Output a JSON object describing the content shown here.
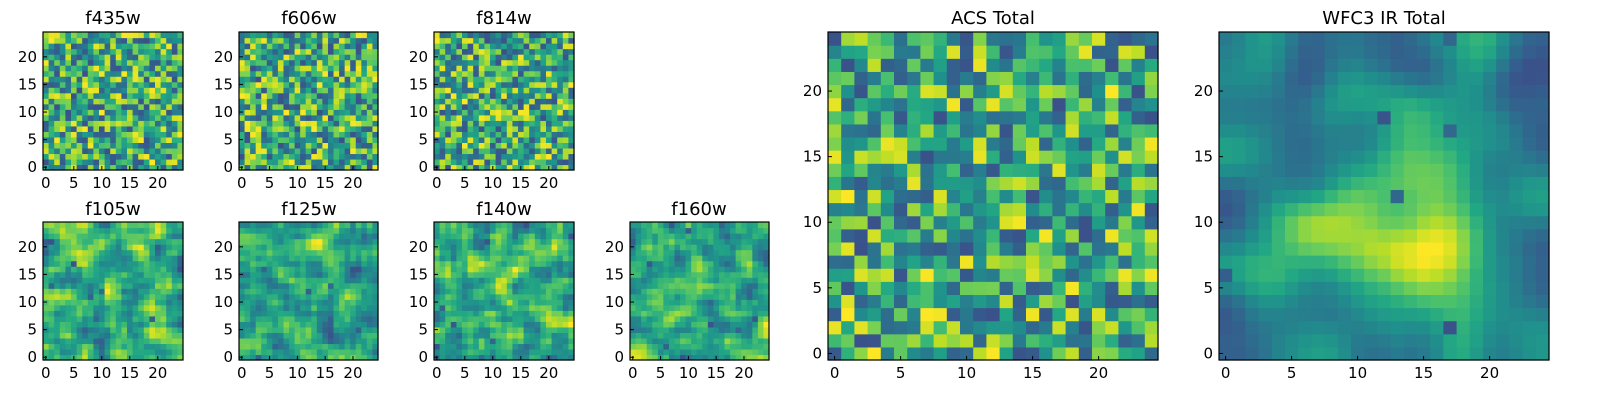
{
  "chart_data": {
    "type": "heatmap",
    "colormap": "viridis",
    "panels": [
      {
        "id": "f435w",
        "title": "f435w",
        "grid": 25,
        "xticks": [
          "0",
          "5",
          "10",
          "15",
          "20"
        ],
        "yticks": [
          "0",
          "5",
          "10",
          "15",
          "20"
        ],
        "texture": "noise",
        "seed": 11
      },
      {
        "id": "f606w",
        "title": "f606w",
        "grid": 25,
        "xticks": [
          "0",
          "5",
          "10",
          "15",
          "20"
        ],
        "yticks": [
          "0",
          "5",
          "10",
          "15",
          "20"
        ],
        "texture": "noise",
        "seed": 23
      },
      {
        "id": "f814w",
        "title": "f814w",
        "grid": 25,
        "xticks": [
          "0",
          "5",
          "10",
          "15",
          "20"
        ],
        "yticks": [
          "0",
          "5",
          "10",
          "15",
          "20"
        ],
        "texture": "noise",
        "seed": 37
      },
      {
        "id": "f105w",
        "title": "f105w",
        "grid": 25,
        "xticks": [
          "0",
          "5",
          "10",
          "15",
          "20"
        ],
        "yticks": [
          "0",
          "5",
          "10",
          "15",
          "20"
        ],
        "texture": "smooth",
        "seed": 41
      },
      {
        "id": "f125w",
        "title": "f125w",
        "grid": 25,
        "xticks": [
          "0",
          "5",
          "10",
          "15",
          "20"
        ],
        "yticks": [
          "0",
          "5",
          "10",
          "15",
          "20"
        ],
        "texture": "smooth",
        "seed": 53
      },
      {
        "id": "f140w",
        "title": "f140w",
        "grid": 25,
        "xticks": [
          "0",
          "5",
          "10",
          "15",
          "20"
        ],
        "yticks": [
          "0",
          "5",
          "10",
          "15",
          "20"
        ],
        "texture": "smooth",
        "seed": 67
      },
      {
        "id": "f160w",
        "title": "f160w",
        "grid": 25,
        "xticks": [
          "0",
          "5",
          "10",
          "15",
          "20"
        ],
        "yticks": [
          "0",
          "5",
          "10",
          "15",
          "20"
        ],
        "texture": "smooth",
        "seed": 79
      },
      {
        "id": "acs_total",
        "title": "ACS Total",
        "grid": 25,
        "xticks": [
          "0",
          "5",
          "10",
          "15",
          "20"
        ],
        "yticks": [
          "0",
          "5",
          "10",
          "15",
          "20"
        ],
        "texture": "noise",
        "seed": 83
      },
      {
        "id": "wfc3_total",
        "title": "WFC3 IR Total",
        "grid": 25,
        "xticks": [
          "0",
          "5",
          "10",
          "15",
          "20"
        ],
        "yticks": [
          "0",
          "5",
          "10",
          "15",
          "20"
        ],
        "texture": "blob",
        "seed": 97
      }
    ],
    "xlabel": "",
    "ylabel": "",
    "xlim": [
      0,
      25
    ],
    "ylim": [
      0,
      25
    ]
  }
}
